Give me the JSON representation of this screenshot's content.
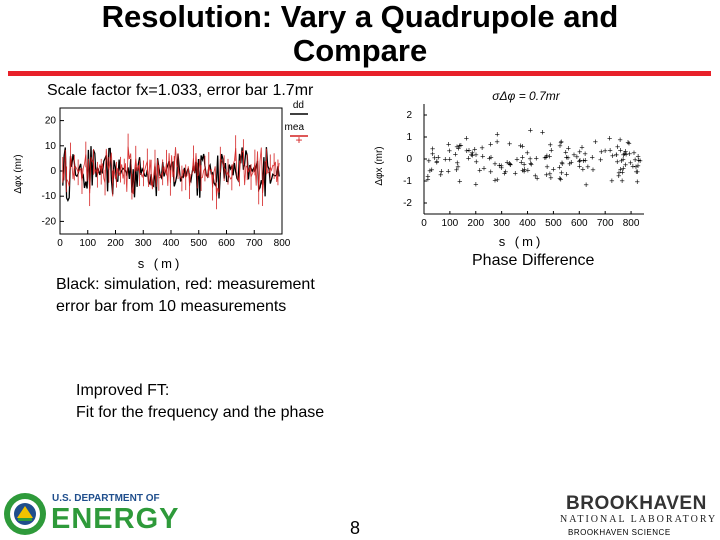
{
  "slide": {
    "title_line1": "Resolution: Vary a Quadrupole and",
    "title_line2": "Compare",
    "caption": "Scale factor fx=1.033, error bar 1.7mr",
    "phase_difference_label": "Phase Difference",
    "description_line1": "Black: simulation, red: measurement",
    "description_line2": "error bar from 10 measurements",
    "improved_line1": "Improved FT:",
    "improved_line2": "Fit for the frequency and the phase",
    "page_number": "8"
  },
  "logos": {
    "doe_line1": "U.S. DEPARTMENT OF",
    "doe_line2": "ENERGY",
    "bnl_name": "BROOKHAVEN",
    "bnl_lab": "NATIONAL LABORATORY",
    "bnl_sub": "BROOKHAVEN SCIENCE"
  },
  "colors": {
    "title_rule": "#e8212a",
    "measurement": "#d42020",
    "simulation": "#000000",
    "doe_green": "#2e9a3a",
    "doe_blue": "#1f4e8c"
  },
  "chart_data": [
    {
      "type": "line",
      "xlabel": "s (m)",
      "ylabel": "Δφx (mr)",
      "x_ticks": [
        "0",
        "100",
        "200",
        "300",
        "400",
        "500",
        "600",
        "700",
        "800"
      ],
      "y_ticks": [
        "20",
        "10",
        "0",
        "-10",
        "-20"
      ],
      "xlim": [
        0,
        800
      ],
      "ylim": [
        -25,
        25
      ],
      "legend": [
        "dd",
        "mea"
      ],
      "legend_placement": "top-right",
      "series": [
        {
          "name": "dd",
          "color": "#000000",
          "n_points": 170,
          "amplitude": 12
        },
        {
          "name": "mea",
          "color": "#d42020",
          "n_points": 170,
          "amplitude": 11,
          "error_bar": 1.7
        }
      ]
    },
    {
      "type": "scatter",
      "title": "σΔφ = 0.7mr",
      "xlabel": "s (m)",
      "ylabel": "Δφx (mr)",
      "x_ticks": [
        "0",
        "100",
        "200",
        "300",
        "400",
        "500",
        "600",
        "700",
        "800"
      ],
      "y_ticks": [
        "2",
        "1",
        "0",
        "-1",
        "-2"
      ],
      "xlim": [
        0,
        850
      ],
      "ylim": [
        -2.5,
        2.5
      ],
      "n_points": 165,
      "spread": 0.7
    }
  ]
}
